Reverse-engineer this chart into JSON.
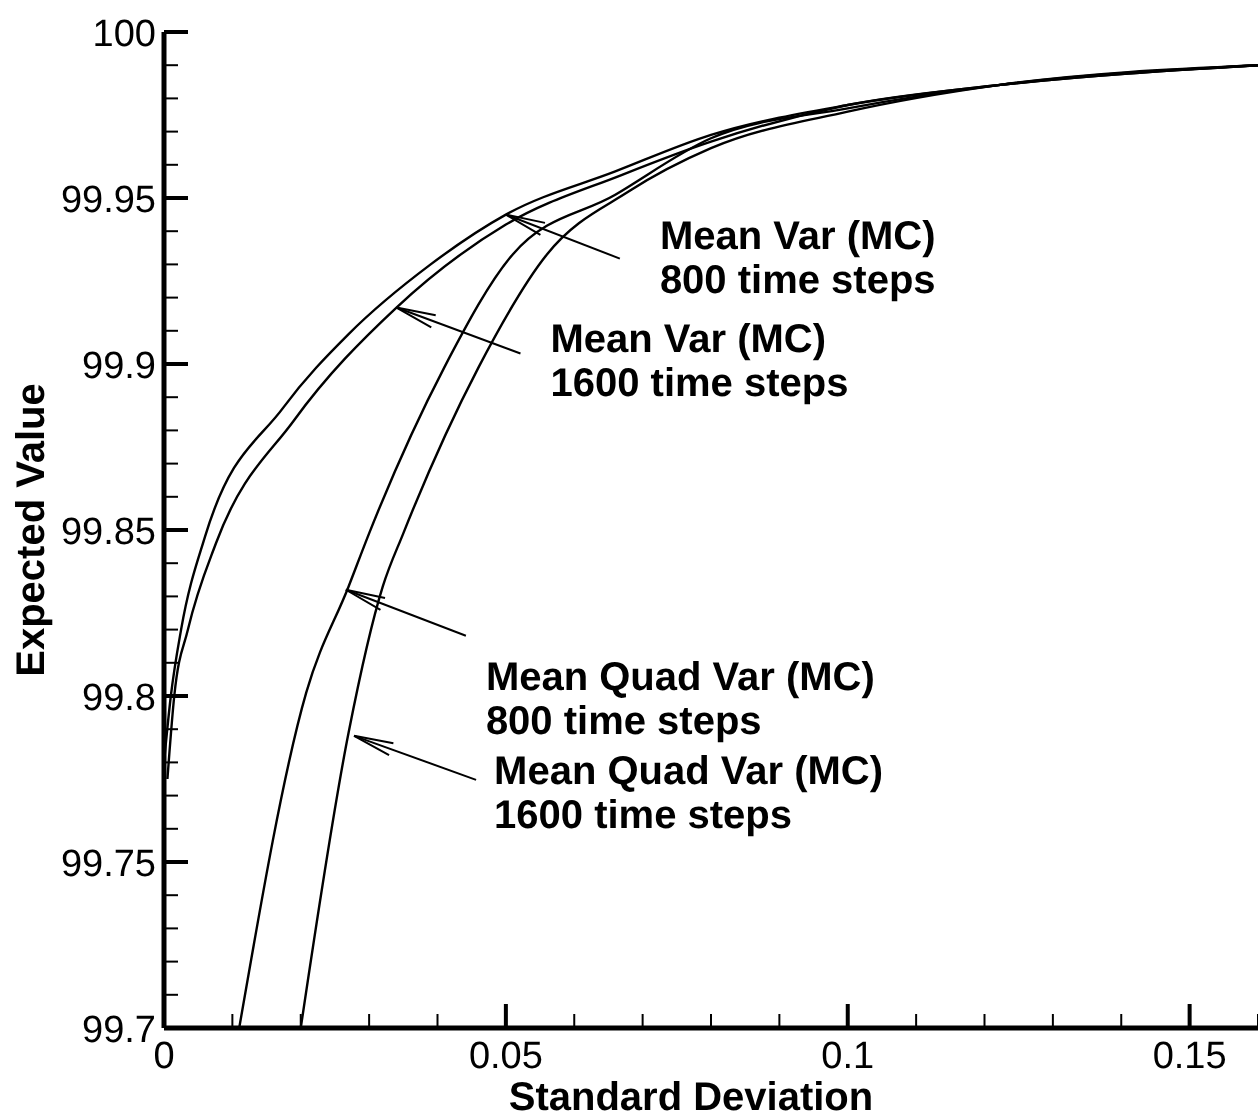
{
  "chart_data": {
    "type": "line",
    "xlabel": "Standard Deviation",
    "ylabel": "Expected Value",
    "xlim": [
      0,
      0.16
    ],
    "ylim": [
      99.7,
      100
    ],
    "xticks": [
      0,
      {
        "value": 0.01,
        "label": null
      },
      {
        "value": 0.02,
        "label": null
      },
      {
        "value": 0.03,
        "label": null
      },
      {
        "value": 0.04,
        "label": null
      },
      0.05,
      {
        "value": 0.06,
        "label": null
      },
      {
        "value": 0.07,
        "label": null
      },
      {
        "value": 0.08,
        "label": null
      },
      {
        "value": 0.09,
        "label": null
      },
      0.1,
      {
        "value": 0.11,
        "label": null
      },
      {
        "value": 0.12,
        "label": null
      },
      {
        "value": 0.13,
        "label": null
      },
      {
        "value": 0.14,
        "label": null
      },
      0.15,
      {
        "value": 0.16,
        "label": null
      }
    ],
    "yticks": [
      99.7,
      {
        "value": 99.71,
        "label": null
      },
      {
        "value": 99.72,
        "label": null
      },
      {
        "value": 99.73,
        "label": null
      },
      {
        "value": 99.74,
        "label": null
      },
      99.75,
      {
        "value": 99.76,
        "label": null
      },
      {
        "value": 99.77,
        "label": null
      },
      {
        "value": 99.78,
        "label": null
      },
      {
        "value": 99.79,
        "label": null
      },
      99.8,
      {
        "value": 99.81,
        "label": null
      },
      {
        "value": 99.82,
        "label": null
      },
      {
        "value": 99.83,
        "label": null
      },
      {
        "value": 99.84,
        "label": null
      },
      99.85,
      {
        "value": 99.86,
        "label": null
      },
      {
        "value": 99.87,
        "label": null
      },
      {
        "value": 99.88,
        "label": null
      },
      {
        "value": 99.89,
        "label": null
      },
      99.9,
      {
        "value": 99.91,
        "label": null
      },
      {
        "value": 99.92,
        "label": null
      },
      {
        "value": 99.93,
        "label": null
      },
      {
        "value": 99.94,
        "label": null
      },
      99.95,
      {
        "value": 99.96,
        "label": null
      },
      {
        "value": 99.97,
        "label": null
      },
      {
        "value": 99.98,
        "label": null
      },
      {
        "value": 99.99,
        "label": null
      },
      100
    ],
    "grid": false,
    "marker": "none",
    "line_style": "solid",
    "series": [
      {
        "color": "#000000",
        "x": [
          0,
          0.001,
          0.0025,
          0.006,
          0.0175,
          0.027,
          0.039,
          0.05,
          0.066,
          0.08,
          0.1,
          0.122,
          0.16
        ],
        "values": [
          99.78,
          99.8,
          99.82,
          99.848,
          99.887,
          99.909,
          99.93,
          99.945,
          99.958,
          99.969,
          99.978,
          99.984,
          99.99
        ]
      },
      {
        "color": "#000000",
        "x": [
          0.0005,
          0.0015,
          0.0035,
          0.0076,
          0.019,
          0.034,
          0.05,
          0.067,
          0.08,
          0.1,
          0.122,
          0.16
        ],
        "values": [
          99.775,
          99.8,
          99.82,
          99.846,
          99.883,
          99.917,
          99.942,
          99.957,
          99.967,
          99.978,
          99.984,
          99.99
        ]
      },
      {
        "color": "#000000",
        "x": [
          0.011,
          0.0208,
          0.027,
          0.03,
          0.041,
          0.051,
          0.066,
          0.08,
          0.1,
          0.122,
          0.16
        ],
        "values": [
          99.7,
          99.801,
          99.833,
          99.849,
          99.899,
          99.933,
          99.951,
          99.968,
          99.977,
          99.984,
          99.99
        ]
      },
      {
        "color": "#000000",
        "x": [
          0.02,
          0.027,
          0.032,
          0.035,
          0.046,
          0.056,
          0.068,
          0.08,
          0.1,
          0.122,
          0.16
        ],
        "values": [
          99.7,
          99.789,
          99.833,
          99.849,
          99.899,
          99.933,
          99.952,
          99.965,
          99.976,
          99.984,
          99.99
        ]
      }
    ],
    "annotations": [
      {
        "text": "Mean Var (MC)\n800 time steps",
        "x": 0.05,
        "y": 99.945
      },
      {
        "text": "Mean Var (MC)\n1600 time steps",
        "x": 0.034,
        "y": 99.917
      },
      {
        "text": "Mean Quad Var (MC)\n800 time steps",
        "x": 0.0266,
        "y": 99.832
      },
      {
        "text": "Mean Quad Var (MC)\n1600 time steps",
        "x": 0.0278,
        "y": 99.788
      }
    ]
  }
}
